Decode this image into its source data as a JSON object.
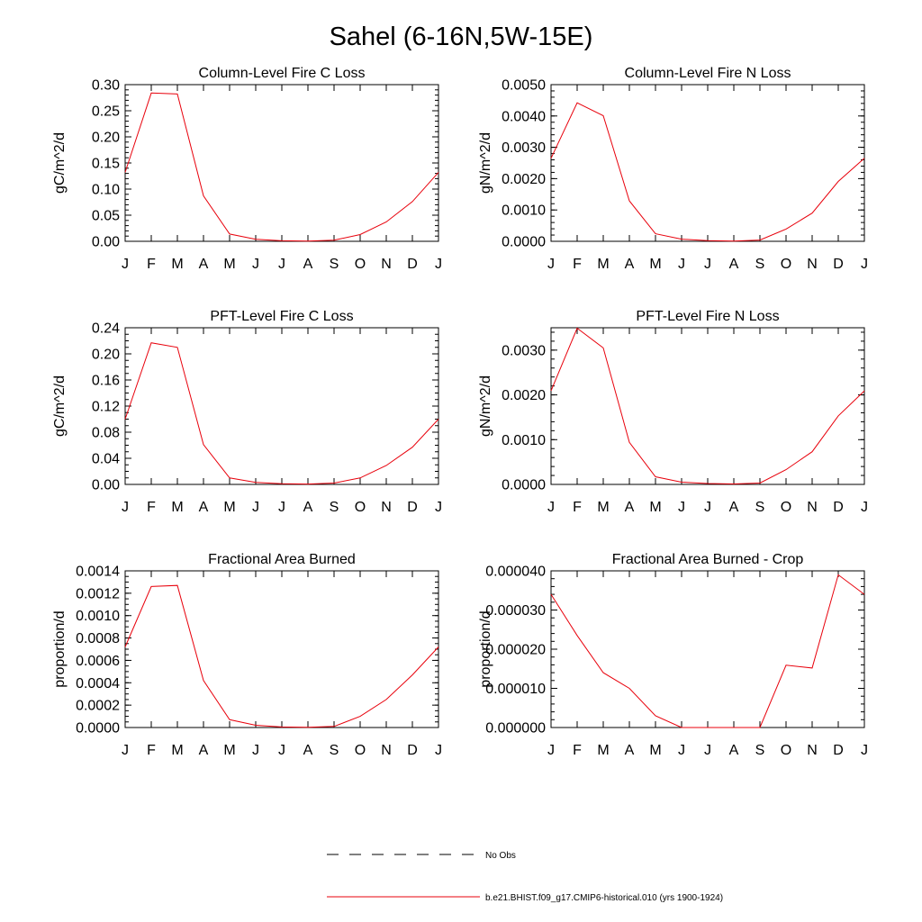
{
  "page": {
    "title": "Sahel (6-16N,5W-15E)"
  },
  "legend": {
    "items": [
      {
        "label": "No Obs",
        "color": "#000000",
        "dashed": true
      },
      {
        "label": "b.e21.BHIST.f09_g17.CMIP6-historical.010 (yrs 1900-1924)",
        "color": "#e8000b",
        "dashed": false
      }
    ]
  },
  "chart_data": [
    {
      "type": "line",
      "title": "Column-Level Fire C Loss",
      "ylabel": "gC/m^2/d",
      "xlabel": "",
      "categories": [
        "J",
        "F",
        "M",
        "A",
        "M",
        "J",
        "J",
        "A",
        "S",
        "O",
        "N",
        "D",
        "J"
      ],
      "ylim": [
        0,
        0.3
      ],
      "yticks": [
        "0.00",
        "0.05",
        "0.10",
        "0.15",
        "0.20",
        "0.25",
        "0.30"
      ],
      "minor_per_major": 4,
      "series": [
        {
          "color": "#e8000b",
          "values": [
            0.132,
            0.284,
            0.282,
            0.087,
            0.014,
            0.004,
            0.001,
            0.0005,
            0.002,
            0.013,
            0.037,
            0.076,
            0.132
          ]
        }
      ]
    },
    {
      "type": "line",
      "title": "Column-Level Fire N Loss",
      "ylabel": "gN/m^2/d",
      "xlabel": "",
      "categories": [
        "J",
        "F",
        "M",
        "A",
        "M",
        "J",
        "J",
        "A",
        "S",
        "O",
        "N",
        "D",
        "J"
      ],
      "ylim": [
        0,
        0.005
      ],
      "yticks": [
        "0.0000",
        "0.0010",
        "0.0020",
        "0.0030",
        "0.0040",
        "0.0050"
      ],
      "minor_per_major": 4,
      "series": [
        {
          "color": "#e8000b",
          "values": [
            0.00265,
            0.00442,
            0.00401,
            0.00129,
            0.00024,
            7e-05,
            2e-05,
            1e-05,
            4e-05,
            0.00039,
            0.0009,
            0.00191,
            0.00265
          ]
        }
      ]
    },
    {
      "type": "line",
      "title": "PFT-Level Fire C Loss",
      "ylabel": "gC/m^2/d",
      "xlabel": "",
      "categories": [
        "J",
        "F",
        "M",
        "A",
        "M",
        "J",
        "J",
        "A",
        "S",
        "O",
        "N",
        "D",
        "J"
      ],
      "ylim": [
        0,
        0.24
      ],
      "yticks": [
        "0.00",
        "0.04",
        "0.08",
        "0.12",
        "0.16",
        "0.20",
        "0.24"
      ],
      "minor_per_major": 3,
      "series": [
        {
          "color": "#e8000b",
          "values": [
            0.1,
            0.217,
            0.21,
            0.061,
            0.01,
            0.003,
            0.001,
            0.0005,
            0.002,
            0.01,
            0.029,
            0.057,
            0.1
          ]
        }
      ]
    },
    {
      "type": "line",
      "title": "PFT-Level Fire N Loss",
      "ylabel": "gN/m^2/d",
      "xlabel": "",
      "categories": [
        "J",
        "F",
        "M",
        "A",
        "M",
        "J",
        "J",
        "A",
        "S",
        "O",
        "N",
        "D",
        "J"
      ],
      "ylim": [
        0,
        0.0035
      ],
      "yticks": [
        "0.0000",
        "0.0010",
        "0.0020",
        "0.0030"
      ],
      "ytick_values": [
        0,
        0.001,
        0.002,
        0.003
      ],
      "minor_per_major": 4,
      "series": [
        {
          "color": "#e8000b",
          "values": [
            0.00209,
            0.00349,
            0.00305,
            0.00094,
            0.00017,
            5e-05,
            2e-05,
            1e-05,
            3e-05,
            0.00033,
            0.00073,
            0.00153,
            0.00209
          ]
        }
      ]
    },
    {
      "type": "line",
      "title": "Fractional Area Burned",
      "ylabel": "proportion/d",
      "xlabel": "",
      "categories": [
        "J",
        "F",
        "M",
        "A",
        "M",
        "J",
        "J",
        "A",
        "S",
        "O",
        "N",
        "D",
        "J"
      ],
      "ylim": [
        0,
        0.0014
      ],
      "yticks": [
        "0.0000",
        "0.0002",
        "0.0004",
        "0.0006",
        "0.0008",
        "0.0010",
        "0.0012",
        "0.0014"
      ],
      "minor_per_major": 3,
      "series": [
        {
          "color": "#e8000b",
          "values": [
            0.00072,
            0.00126,
            0.00127,
            0.00042,
            7e-05,
            2e-05,
            5e-06,
            2e-06,
            1e-05,
            0.0001,
            0.00025,
            0.00047,
            0.00072
          ]
        }
      ]
    },
    {
      "type": "line",
      "title": "Fractional Area Burned - Crop",
      "ylabel": "proportion/d",
      "xlabel": "",
      "categories": [
        "J",
        "F",
        "M",
        "A",
        "M",
        "J",
        "J",
        "A",
        "S",
        "O",
        "N",
        "D",
        "J"
      ],
      "ylim": [
        0,
        4e-05
      ],
      "yticks": [
        "0.000000",
        "0.000010",
        "0.000020",
        "0.000030",
        "0.000040"
      ],
      "minor_per_major": 4,
      "series": [
        {
          "color": "#e8000b",
          "values": [
            3.4e-05,
            2.35e-05,
            1.4e-05,
            1e-05,
            3e-06,
            0,
            0,
            0,
            0,
            1.59e-05,
            1.52e-05,
            3.9e-05,
            3.4e-05
          ]
        }
      ]
    }
  ]
}
